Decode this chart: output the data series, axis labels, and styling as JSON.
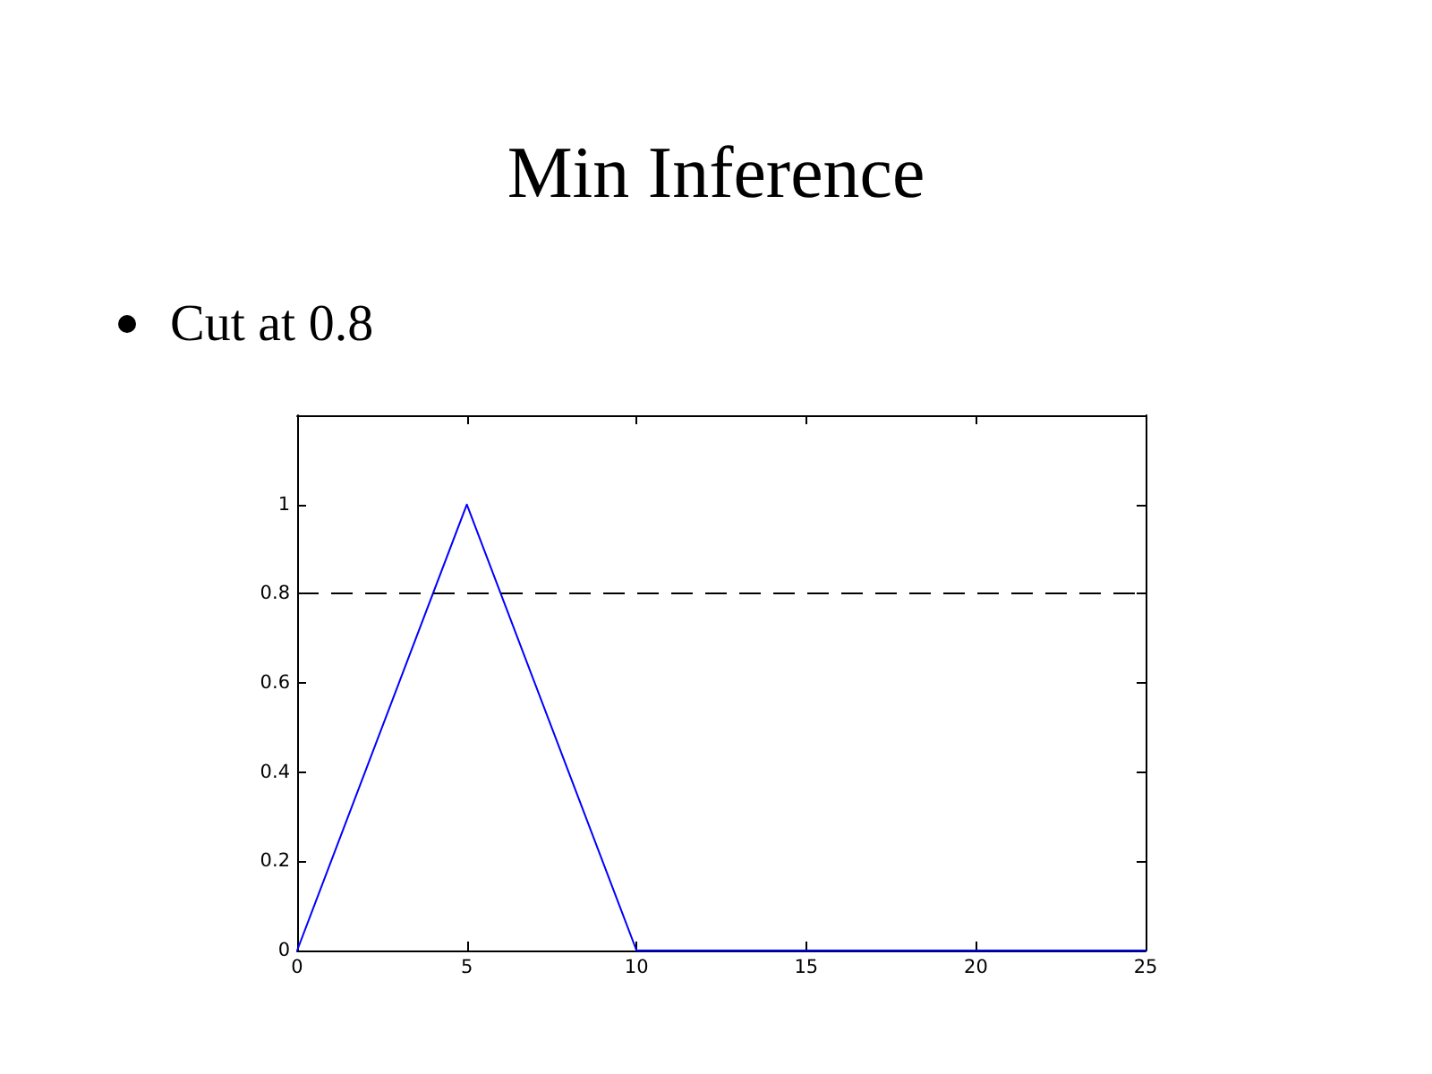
{
  "chart_data": {
    "type": "line",
    "title": "Min Inference",
    "subtitle": "Cut at 0.8",
    "x": [
      0,
      5,
      10,
      25
    ],
    "series": [
      {
        "color": "#0000ff",
        "values": [
          0,
          1,
          0,
          0
        ]
      }
    ],
    "xlim": [
      0,
      25
    ],
    "xticks": [
      0,
      5,
      10,
      15,
      20,
      25
    ],
    "ylim": [
      0,
      1.2
    ],
    "yticks": [
      0,
      0.2,
      0.4,
      0.6,
      0.8,
      1
    ],
    "ref_lines": [
      {
        "axis": "y",
        "value": 0.8,
        "color": "#000000",
        "line_style": "dashed"
      }
    ],
    "grid": false,
    "marker": "none",
    "line_style": "solid"
  }
}
